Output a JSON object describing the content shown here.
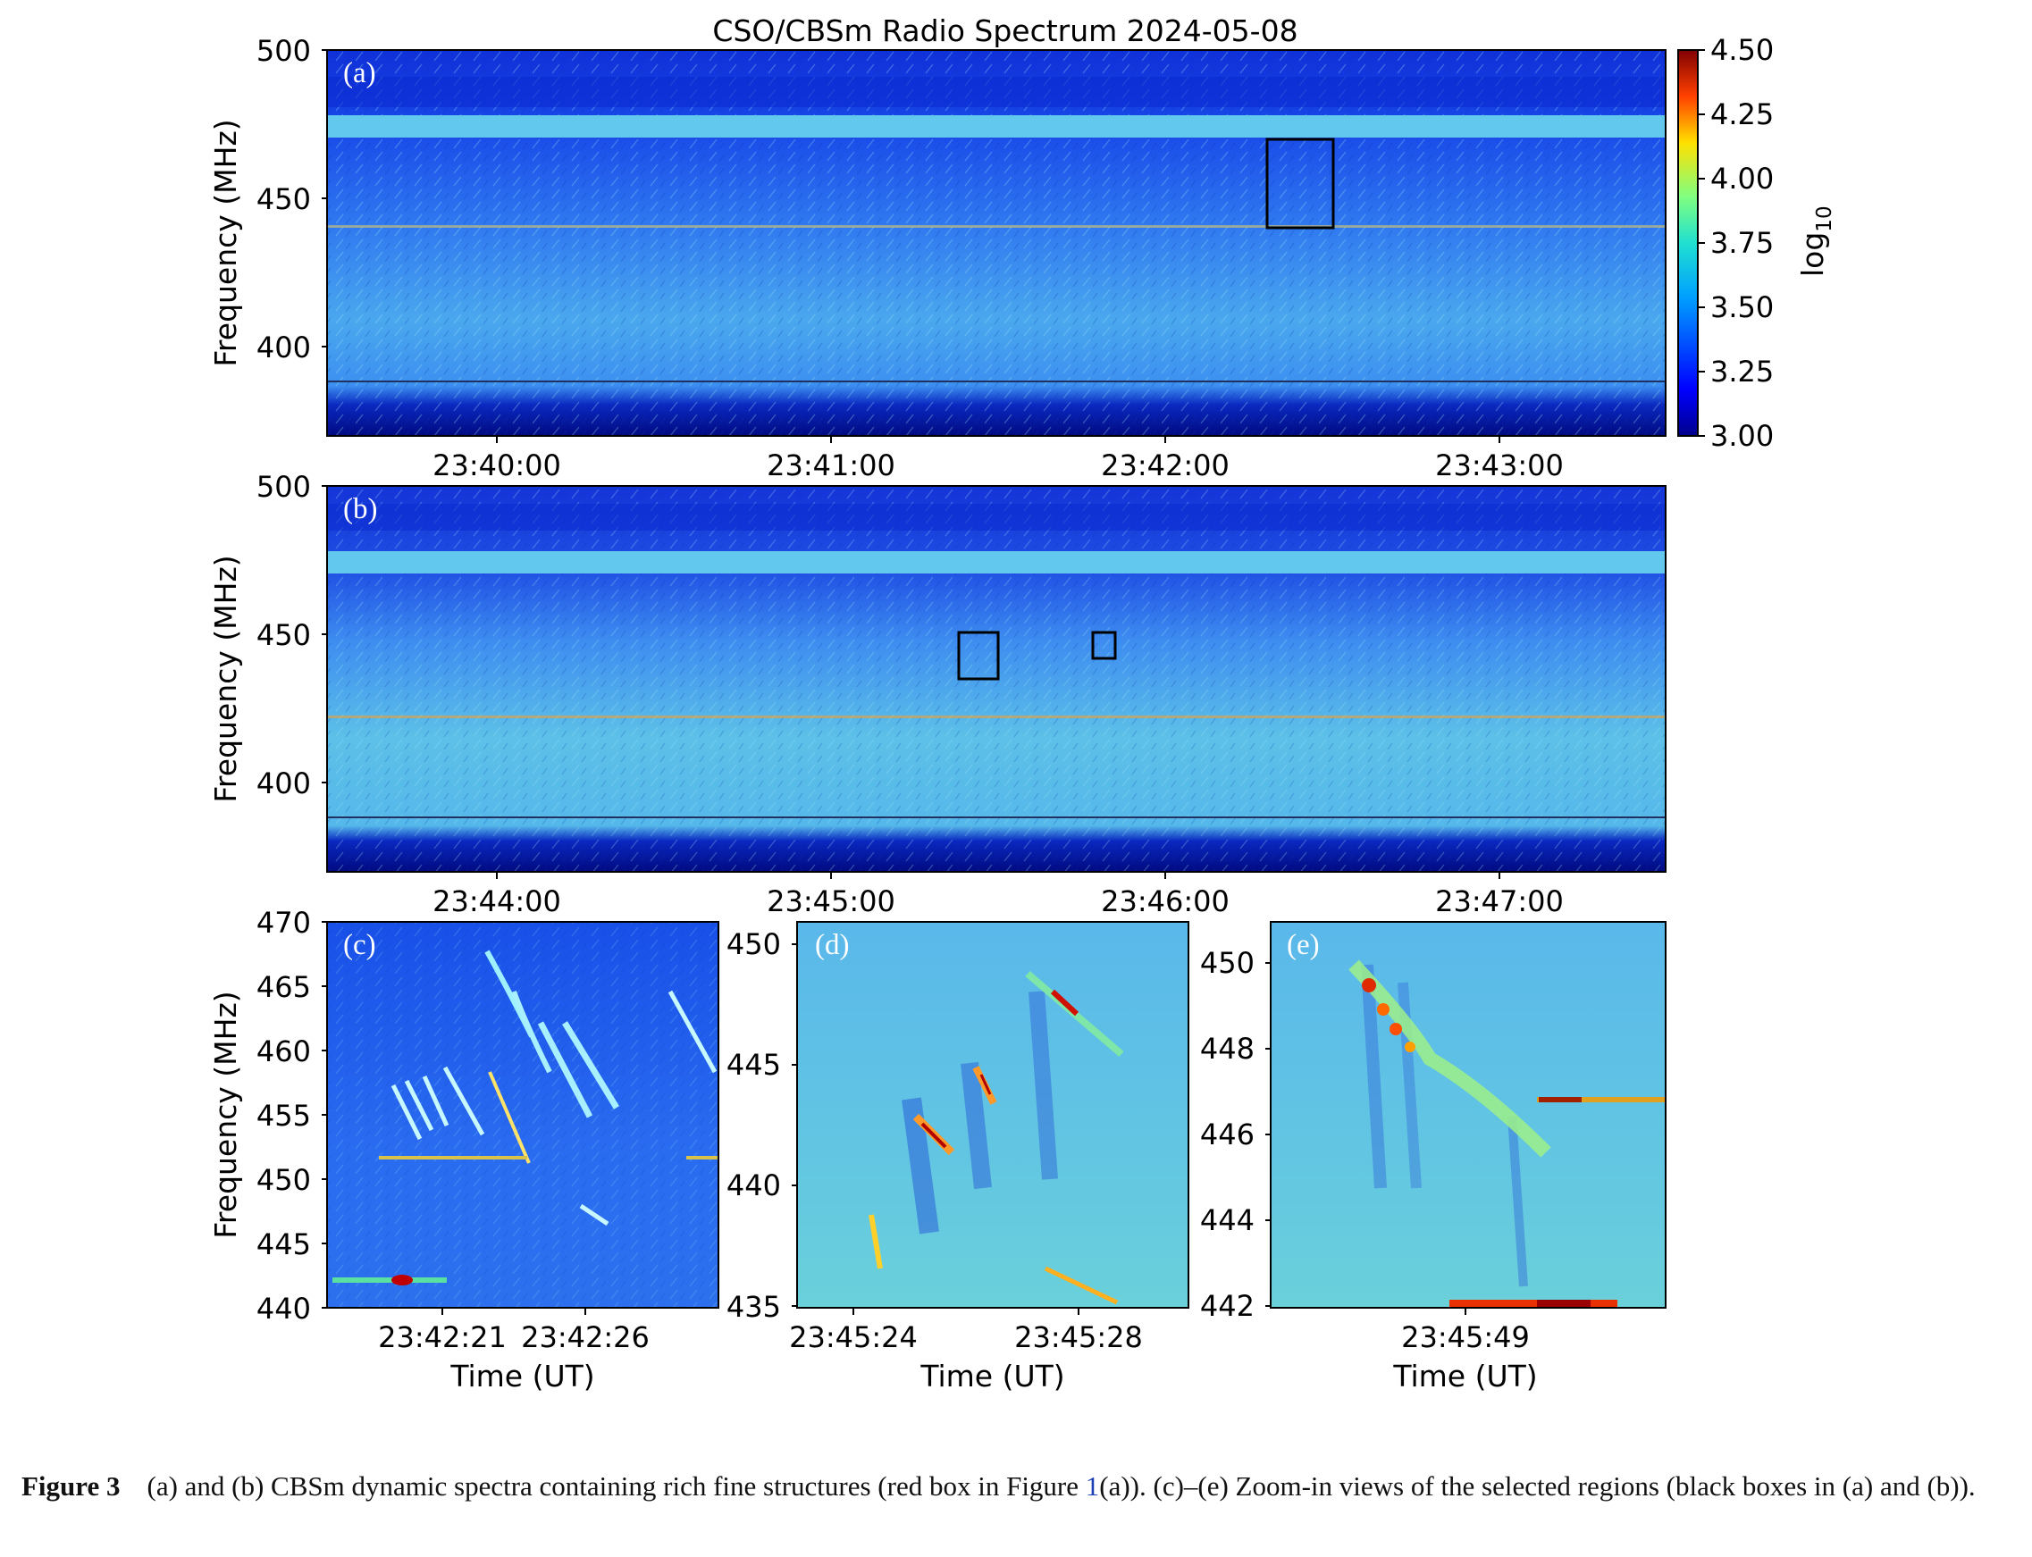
{
  "figure": {
    "title": "CSO/CBSm Radio Spectrum 2024-05-08",
    "ylabel": "Frequency (MHz)",
    "xlabel": "Time (UT)",
    "colorbar": {
      "label": "log",
      "label_sub": "10",
      "ticks": [
        "4.50",
        "4.25",
        "4.00",
        "3.75",
        "3.50",
        "3.25",
        "3.00"
      ],
      "range": [
        3.0,
        4.5
      ],
      "colormap": "jet"
    },
    "panels": [
      {
        "id": "a",
        "label": "(a)",
        "yticks": [
          "500",
          "450",
          "400"
        ],
        "xticks": [
          "23:40:00",
          "23:41:00",
          "23:42:00",
          "23:43:00"
        ],
        "black_boxes": 1
      },
      {
        "id": "b",
        "label": "(b)",
        "yticks": [
          "500",
          "450",
          "400"
        ],
        "xticks": [
          "23:44:00",
          "23:45:00",
          "23:46:00",
          "23:47:00"
        ],
        "black_boxes": 2
      },
      {
        "id": "c",
        "label": "(c)",
        "yticks": [
          "470",
          "465",
          "460",
          "455",
          "450",
          "445",
          "440"
        ],
        "xticks": [
          "23:42:21",
          "23:42:26"
        ]
      },
      {
        "id": "d",
        "label": "(d)",
        "yticks": [
          "450",
          "445",
          "440",
          "435"
        ],
        "xticks": [
          "23:45:24",
          "23:45:28"
        ]
      },
      {
        "id": "e",
        "label": "(e)",
        "yticks": [
          "450",
          "448",
          "446",
          "444",
          "442"
        ],
        "xticks": [
          "23:45:49"
        ]
      }
    ]
  },
  "caption": {
    "label": "Figure 3",
    "text_before": "(a) and (b) CBSm dynamic spectra containing rich fine structures (red box in Figure ",
    "ref": "1",
    "text_after": "(a)). (c)–(e) Zoom-in views of the selected regions (black boxes in (a) and (b))."
  }
}
